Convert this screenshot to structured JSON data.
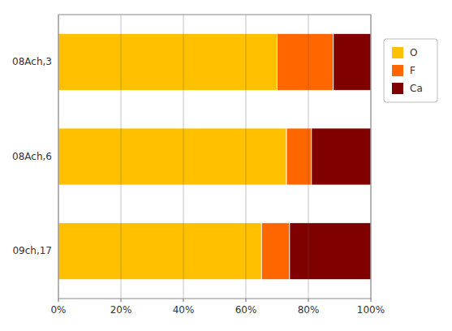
{
  "chart_data": {
    "type": "bar",
    "orientation": "horizontal",
    "stacked": true,
    "categories": [
      "09ch,17",
      "08Ach,6",
      "08Ach,3"
    ],
    "series": [
      {
        "name": "O",
        "color": "#FFC000",
        "values": [
          65,
          73,
          70
        ]
      },
      {
        "name": "F",
        "color": "#FF6600",
        "values": [
          9,
          8,
          18
        ]
      },
      {
        "name": "Ca",
        "color": "#800000",
        "values": [
          26,
          19,
          12
        ]
      }
    ],
    "xlim": [
      0,
      100
    ],
    "xticks": [
      {
        "value": 0,
        "label": "0%"
      },
      {
        "value": 20,
        "label": "20%"
      },
      {
        "value": 40,
        "label": "40%"
      },
      {
        "value": 60,
        "label": "60%"
      },
      {
        "value": 80,
        "label": "80%"
      },
      {
        "value": 100,
        "label": "100%"
      }
    ],
    "grid": true,
    "legend": "right"
  }
}
